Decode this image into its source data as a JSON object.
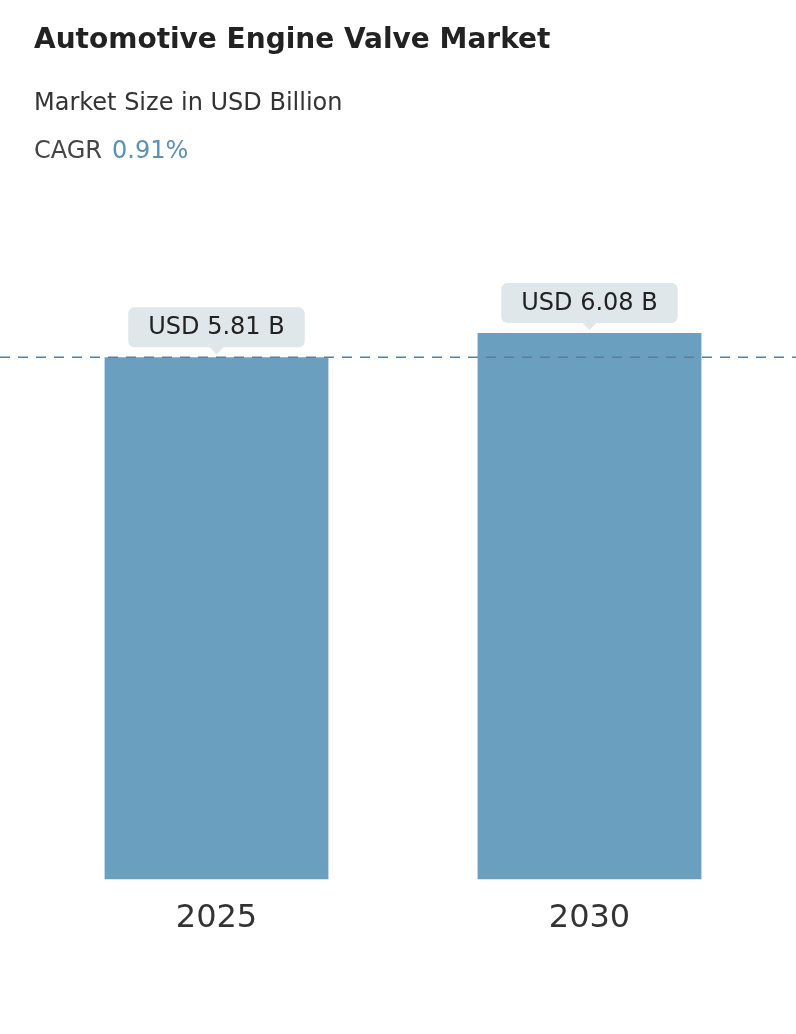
{
  "chart_data": {
    "type": "bar",
    "title": "Automotive Engine Valve Market",
    "subtitle": "Market Size in USD Billion",
    "annotations": [
      "CAGR",
      "0.91%"
    ],
    "categories": [
      "2025",
      "2030"
    ],
    "series": [
      {
        "color": "#6a9fbf",
        "values": [
          5.81,
          6.08
        ],
        "value_labels": [
          "USD 5.81 B",
          "USD 6.08 B"
        ]
      }
    ],
    "ref_lines": [
      {
        "axis": "y",
        "value": 5.81,
        "color": "#5a7f99",
        "line_style": "dashed"
      }
    ]
  }
}
